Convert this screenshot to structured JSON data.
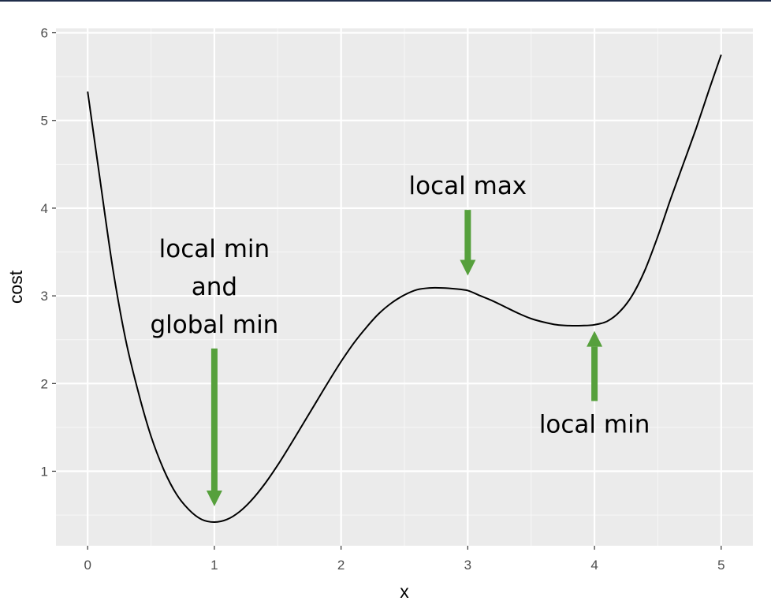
{
  "chart_data": {
    "type": "line",
    "title": "",
    "xlabel": "x",
    "ylabel": "cost",
    "xlim": [
      -0.25,
      5.25
    ],
    "ylim": [
      0.15,
      6.05
    ],
    "x_ticks": [
      0,
      1,
      2,
      3,
      4,
      5
    ],
    "y_ticks": [
      1,
      2,
      3,
      4,
      5,
      6
    ],
    "grid": true,
    "panel_background": "#ebebeb",
    "line_color": "#000000",
    "arrow_color": "#56a03c",
    "series": [
      {
        "x": [
          0,
          0.1,
          0.2,
          0.3,
          0.4,
          0.5,
          0.6,
          0.7,
          0.8,
          0.9,
          1.0,
          1.1,
          1.2,
          1.3,
          1.4,
          1.5,
          1.6,
          1.7,
          1.8,
          1.9,
          2.0,
          2.1,
          2.2,
          2.3,
          2.4,
          2.5,
          2.6,
          2.7,
          2.8,
          2.9,
          3.0,
          3.1,
          3.2,
          3.3,
          3.4,
          3.5,
          3.6,
          3.7,
          3.8,
          3.9,
          4.0,
          4.1,
          4.2,
          4.3,
          4.4,
          4.5,
          4.6,
          4.7,
          4.8,
          4.9,
          5.0
        ],
        "y": [
          5.33,
          4.3,
          3.3,
          2.5,
          1.9,
          1.4,
          1.02,
          0.74,
          0.56,
          0.45,
          0.42,
          0.45,
          0.54,
          0.68,
          0.86,
          1.07,
          1.3,
          1.54,
          1.78,
          2.02,
          2.25,
          2.46,
          2.64,
          2.8,
          2.92,
          3.01,
          3.07,
          3.09,
          3.09,
          3.08,
          3.06,
          3.0,
          2.94,
          2.87,
          2.8,
          2.74,
          2.7,
          2.67,
          2.66,
          2.66,
          2.67,
          2.71,
          2.82,
          3.01,
          3.3,
          3.68,
          4.1,
          4.5,
          4.9,
          5.33,
          5.75
        ]
      }
    ],
    "annotations": [
      {
        "lines": [
          "local max"
        ],
        "arrow_x": 3.0,
        "arrow_from_y": 3.98,
        "arrow_to_y": 3.23,
        "direction": "down"
      },
      {
        "lines": [
          "local min",
          "and",
          "global min"
        ],
        "arrow_x": 1.0,
        "arrow_from_y": 2.4,
        "arrow_to_y": 0.6,
        "direction": "down"
      },
      {
        "lines": [
          "local min"
        ],
        "arrow_x": 4.0,
        "arrow_from_y": 1.8,
        "arrow_to_y": 2.6,
        "direction": "up"
      }
    ]
  }
}
